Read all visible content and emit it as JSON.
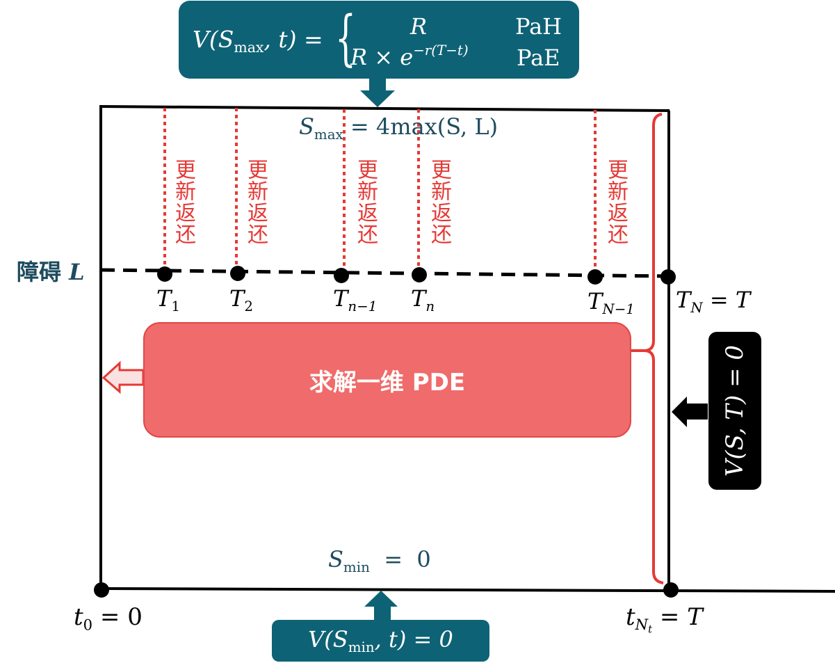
{
  "top_box": {
    "lhs": "V(S",
    "lhs_sub": "max",
    "lhs_tail": ", t) =",
    "case1_value": "R",
    "case1_label": "PaH",
    "case2_base": "R × e",
    "case2_exp": "−r(T−t)",
    "case2_label": "PaE"
  },
  "s_max": {
    "base": "S",
    "sub": "max",
    "rhs": " = 4max(S, L)"
  },
  "s_min": {
    "base": "S",
    "sub": "min",
    "rhs": "  =  0"
  },
  "barrier": {
    "label": "障碍",
    "symbol": "L"
  },
  "rebate_label": "更新返还",
  "monitor_points": [
    {
      "base": "T",
      "sub": "1"
    },
    {
      "base": "T",
      "sub": "2"
    },
    {
      "base": "T",
      "sub": "n−1"
    },
    {
      "base": "T",
      "sub": "n"
    },
    {
      "base": "T",
      "sub": "N−1"
    },
    {
      "base": "T",
      "sub": "N",
      "tail": " = T"
    }
  ],
  "pde_box": {
    "label": "求解一维 PDE"
  },
  "right_box": {
    "label": "V(S, T) = 0"
  },
  "bottom_box": {
    "base": "V(S",
    "sub": "min",
    "tail": ", t) = 0"
  },
  "t_start": {
    "base": "t",
    "sub": "0",
    "tail": " = 0"
  },
  "t_end": {
    "base": "t",
    "sub": "N",
    "subsub": "t",
    "tail": " = T"
  },
  "colors": {
    "teal": "#0e6275",
    "red": "#e53935",
    "pde_fill": "#f06b6b",
    "black": "#000000"
  }
}
